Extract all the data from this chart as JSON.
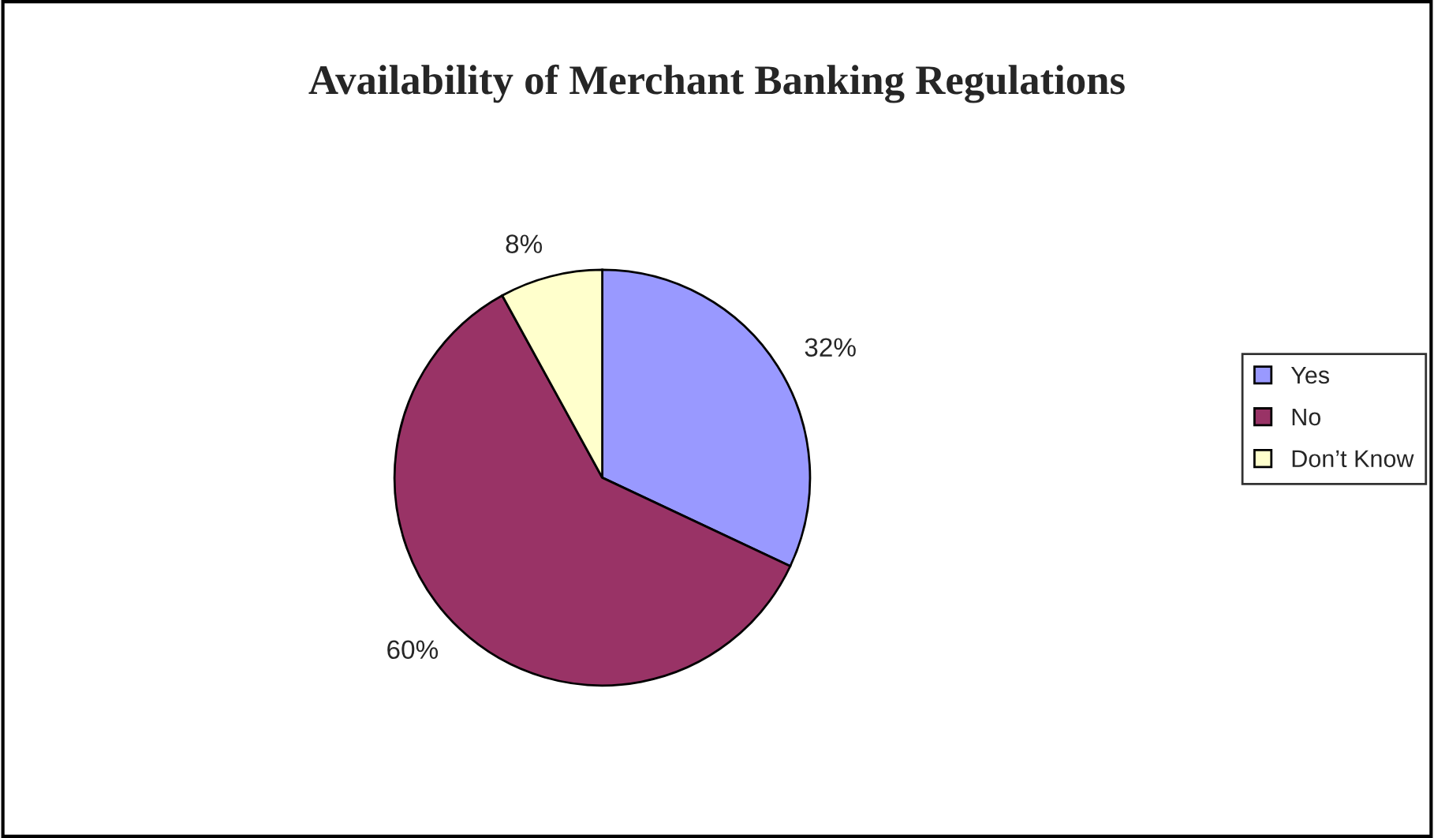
{
  "chart_data": {
    "type": "pie",
    "title": "Availability of Merchant Banking Regulations",
    "categories": [
      "Yes",
      "No",
      "Don’t Know"
    ],
    "values": [
      32,
      60,
      8
    ],
    "colors": [
      "#9999ff",
      "#993366",
      "#ffffcc"
    ],
    "value_labels": [
      "32%",
      "60%",
      "8%"
    ],
    "legend": "right"
  }
}
